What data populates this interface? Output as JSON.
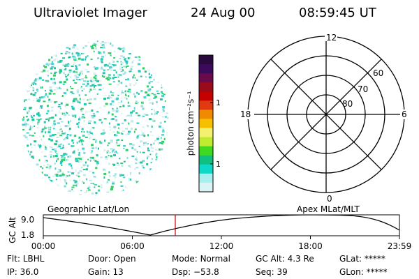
{
  "header": {
    "instrument": "Ultraviolet Imager",
    "date": "24 Aug 00",
    "time": "08:59:45 UT"
  },
  "colorbar": {
    "label": "photon cm⁻²s⁻¹",
    "ticks": [
      "100",
      "10"
    ],
    "colors": [
      "#2a0a3a",
      "#3b0a5c",
      "#6a0a4a",
      "#9a0a1a",
      "#c40000",
      "#e03a10",
      "#f08a00",
      "#f6c000",
      "#f4f070",
      "#c0ec30",
      "#40d820",
      "#10c080",
      "#10d8c8",
      "#a8f0f0",
      "#d8f4f4"
    ]
  },
  "polar": {
    "mlt_labels": {
      "top": "12",
      "bottom": "0",
      "left": "18",
      "right": "6"
    },
    "lat_labels": [
      "60",
      "70",
      "80"
    ]
  },
  "timeline": {
    "left_title": "Geographic Lat/Lon",
    "right_title": "Apex MLat/MLT",
    "y_axis_label": "GC Alt",
    "y_ticks": [
      "9.0",
      "1.8"
    ],
    "x_ticks": [
      "00:00",
      "06:00",
      "12:00",
      "18:00",
      "23:59"
    ],
    "cursor_time": "08:59:45",
    "cursor_color": "#cc0000"
  },
  "info": {
    "row1": [
      {
        "label": "Flt:",
        "value": "LBHL"
      },
      {
        "label": "Door:",
        "value": "Open"
      },
      {
        "label": "Mode:",
        "value": "Normal"
      },
      {
        "label": "GC Alt:",
        "value": "4.3 Re"
      },
      {
        "label": "GLat:",
        "value": "*****"
      }
    ],
    "row2": [
      {
        "label": "IP:",
        "value": "36.0"
      },
      {
        "label": "Gain:",
        "value": "13"
      },
      {
        "label": "Dsp:",
        "value": "−53.8"
      },
      {
        "label": "Seq:",
        "value": "39"
      },
      {
        "label": "GLon:",
        "value": "*****"
      }
    ]
  }
}
